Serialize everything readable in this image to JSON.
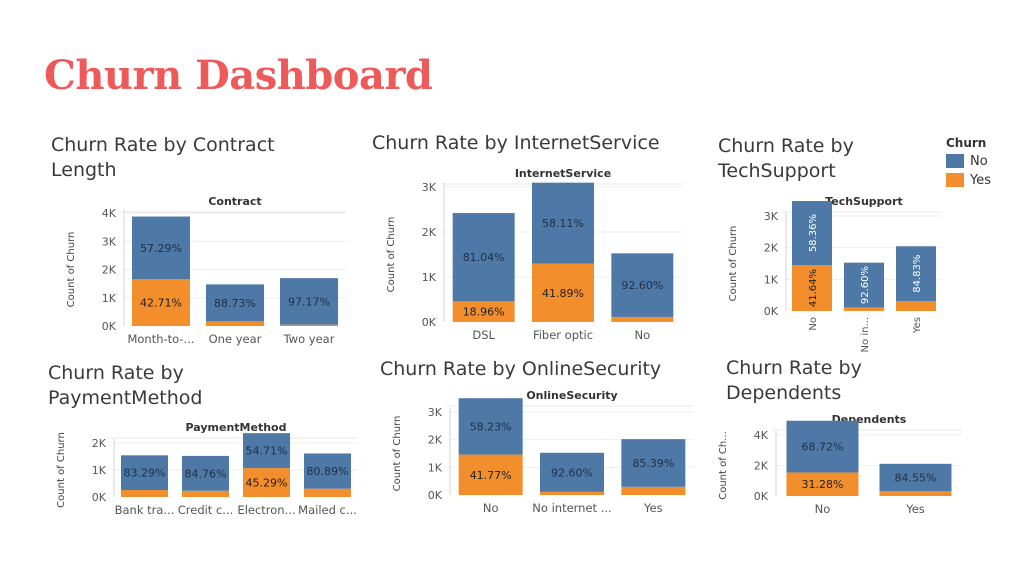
{
  "dashboard": {
    "title": "Churn Dashboard"
  },
  "colors": {
    "no": "#4e79a7",
    "yes": "#f28e2b"
  },
  "legend": {
    "title": "Churn",
    "items": [
      {
        "label": "No",
        "color": "#4e79a7"
      },
      {
        "label": "Yes",
        "color": "#f28e2b"
      }
    ]
  },
  "chart_data": [
    {
      "type": "bar",
      "stacked": true,
      "title": "Churn Rate by Contract Length",
      "subtitle": "Contract",
      "ylabel": "Count of Churn",
      "yticks": [
        "0K",
        "1K",
        "2K",
        "3K",
        "4K"
      ],
      "ylim": [
        0,
        4000
      ],
      "categories": [
        "Month-to-...",
        "One year",
        "Two year"
      ],
      "series": [
        {
          "name": "Yes",
          "values": [
            1655,
            166,
            48
          ]
        },
        {
          "name": "No",
          "values": [
            2220,
            1307,
            1647
          ]
        }
      ],
      "labels": {
        "No": [
          "57.29%",
          "88.73%",
          "97.17%"
        ],
        "Yes": [
          "42.71%",
          "",
          ""
        ]
      }
    },
    {
      "type": "bar",
      "stacked": true,
      "title": "Churn Rate by InternetService",
      "subtitle": "InternetService",
      "ylabel": "Count of Churn",
      "yticks": [
        "0K",
        "1K",
        "2K",
        "3K"
      ],
      "ylim": [
        0,
        3000
      ],
      "categories": [
        "DSL",
        "Fiber optic",
        "No"
      ],
      "series": [
        {
          "name": "Yes",
          "values": [
            459,
            1297,
            113
          ]
        },
        {
          "name": "No",
          "values": [
            1962,
            1799,
            1413
          ]
        }
      ],
      "labels": {
        "No": [
          "81.04%",
          "58.11%",
          "92.60%"
        ],
        "Yes": [
          "18.96%",
          "41.89%",
          ""
        ]
      }
    },
    {
      "type": "bar",
      "stacked": true,
      "title": "Churn Rate by TechSupport",
      "subtitle": "TechSupport",
      "ylabel": "Count of Churn",
      "yticks": [
        "0K",
        "1K",
        "2K",
        "3K"
      ],
      "ylim": [
        0,
        3000
      ],
      "categories": [
        "No",
        "No in...",
        "Yes"
      ],
      "series": [
        {
          "name": "Yes",
          "values": [
            1446,
            113,
            310
          ]
        },
        {
          "name": "No",
          "values": [
            2027,
            1413,
            1734
          ]
        }
      ],
      "labels": {
        "No": [
          "58.36%",
          "92.60%",
          "84.83%"
        ],
        "Yes": [
          "41.64%",
          "",
          ""
        ]
      }
    },
    {
      "type": "bar",
      "stacked": true,
      "title": "Churn Rate by PaymentMethod",
      "subtitle": "PaymentMethod",
      "ylabel": "Count of Churn",
      "yticks": [
        "0K",
        "1K",
        "2K"
      ],
      "ylim": [
        0,
        2000
      ],
      "categories": [
        "Bank tra...",
        "Credit c...",
        "Electron...",
        "Mailed c..."
      ],
      "series": [
        {
          "name": "Yes",
          "values": [
            258,
            232,
            1071,
            308
          ]
        },
        {
          "name": "No",
          "values": [
            1286,
            1290,
            1294,
            1304
          ]
        }
      ],
      "labels": {
        "No": [
          "83.29%",
          "84.76%",
          "54.71%",
          "80.89%"
        ],
        "Yes": [
          "",
          "",
          "45.29%",
          ""
        ]
      }
    },
    {
      "type": "bar",
      "stacked": true,
      "title": "Churn Rate by OnlineSecurity",
      "subtitle": "OnlineSecurity",
      "ylabel": "Count of Churn",
      "yticks": [
        "0K",
        "1K",
        "2K",
        "3K"
      ],
      "ylim": [
        0,
        3000
      ],
      "categories": [
        "No",
        "No internet ...",
        "Yes"
      ],
      "series": [
        {
          "name": "Yes",
          "values": [
            1461,
            113,
            295
          ]
        },
        {
          "name": "No",
          "values": [
            2037,
            1413,
            1724
          ]
        }
      ],
      "labels": {
        "No": [
          "58.23%",
          "92.60%",
          "85.39%"
        ],
        "Yes": [
          "41.77%",
          "",
          ""
        ]
      }
    },
    {
      "type": "bar",
      "stacked": true,
      "title": "Churn Rate by Dependents",
      "subtitle": "Dependents",
      "ylabel": "Count of Ch...",
      "yticks": [
        "0K",
        "2K",
        "4K"
      ],
      "ylim": [
        0,
        4000
      ],
      "categories": [
        "No",
        "Yes"
      ],
      "series": [
        {
          "name": "Yes",
          "values": [
            1543,
            326
          ]
        },
        {
          "name": "No",
          "values": [
            3390,
            1784
          ]
        }
      ],
      "labels": {
        "No": [
          "68.72%",
          "84.55%"
        ],
        "Yes": [
          "31.28%",
          ""
        ]
      }
    }
  ]
}
